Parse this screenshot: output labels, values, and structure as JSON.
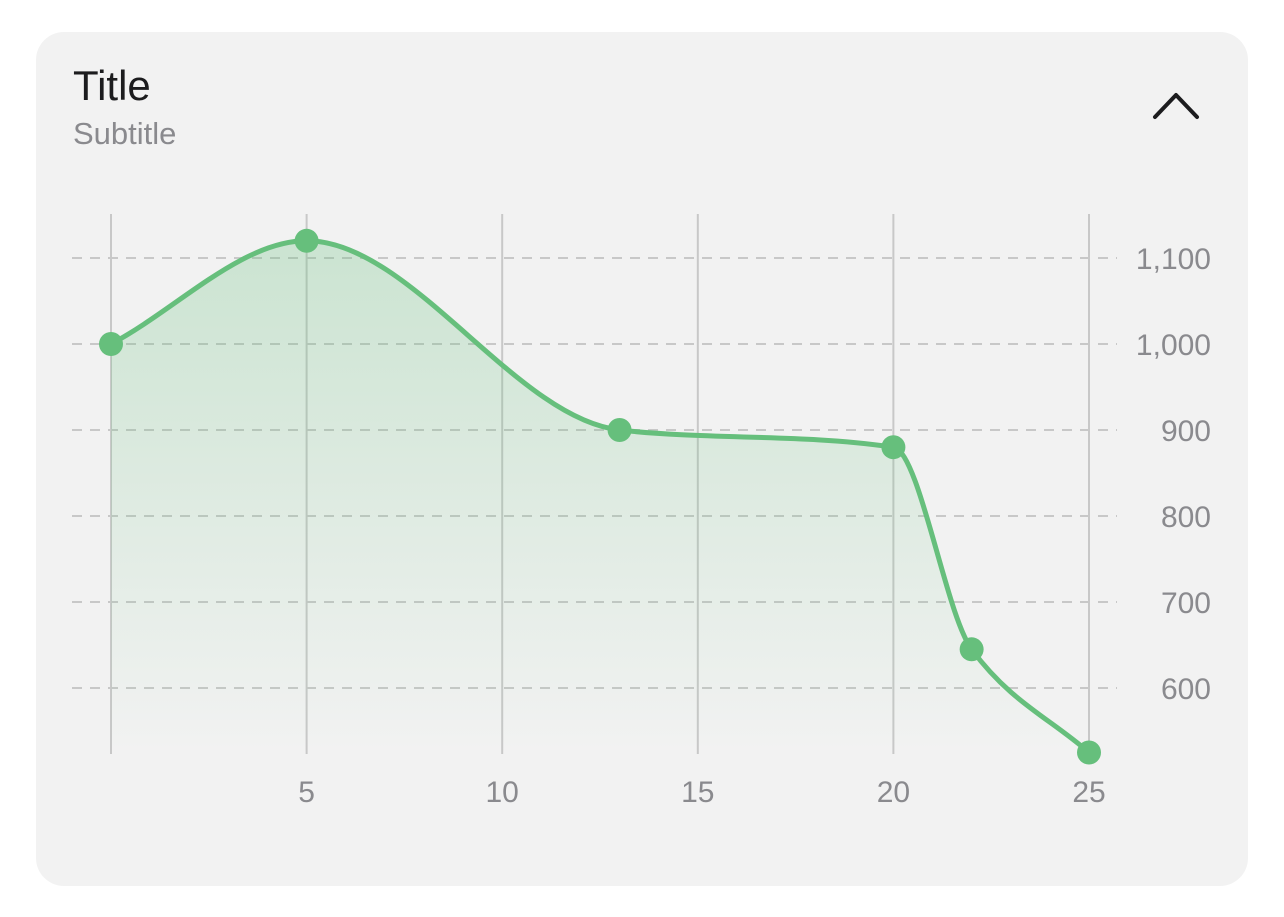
{
  "card": {
    "title": "Title",
    "subtitle": "Subtitle",
    "collapse_icon": "chevron-up-icon"
  },
  "colors": {
    "card_background": "#f2f2f2",
    "line": "#66bf7c",
    "area_fill": "#66bf7c",
    "gridline": "#c8c8c8",
    "tick_text": "#8a8a8e",
    "title_text": "#1c1c1e"
  },
  "chart_data": {
    "type": "area",
    "title": "Title",
    "subtitle": "Subtitle",
    "xlabel": "",
    "ylabel": "",
    "x": [
      0,
      5,
      13,
      20,
      22,
      25
    ],
    "y": [
      1000,
      1120,
      900,
      880,
      645,
      525
    ],
    "xlim": [
      0,
      25
    ],
    "ylim": [
      525,
      1150
    ],
    "x_ticks": [
      5,
      10,
      15,
      20,
      25
    ],
    "x_tick_labels": [
      "5",
      "10",
      "15",
      "20",
      "25"
    ],
    "y_ticks": [
      600,
      700,
      800,
      900,
      1000,
      1100
    ],
    "y_tick_labels": [
      "600",
      "700",
      "800",
      "900",
      "1,000",
      "1,100"
    ],
    "y_axis_position": "right",
    "smooth": true,
    "markers": true,
    "grid": {
      "vertical": "solid",
      "horizontal": "dashed"
    }
  }
}
